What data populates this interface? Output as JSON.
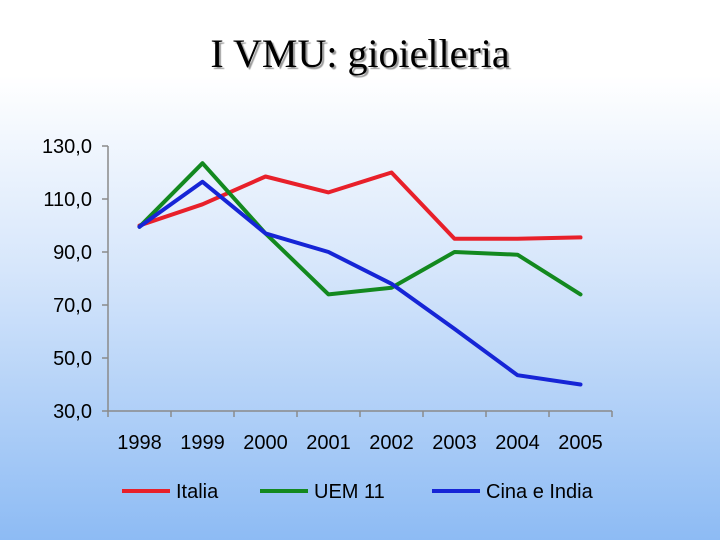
{
  "title": "I VMU: gioielleria",
  "chart_data": {
    "type": "line",
    "categories": [
      "1998",
      "1999",
      "2000",
      "2001",
      "2002",
      "2003",
      "2004",
      "2005"
    ],
    "ylim": [
      30,
      130
    ],
    "yticks": [
      "130,0",
      "110,0",
      "90,0",
      "70,0",
      "50,0",
      "30,0"
    ],
    "ytick_values": [
      130,
      110,
      90,
      70,
      50,
      30
    ],
    "grid": false,
    "legend_position": "bottom",
    "series": [
      {
        "name": "Italia",
        "color": "#e8202a",
        "values": [
          100,
          108,
          118.5,
          112.5,
          120,
          95,
          95,
          95.5
        ]
      },
      {
        "name": "UEM 11",
        "color": "#13891f",
        "values": [
          99.5,
          123.5,
          97,
          74,
          76.5,
          90,
          89,
          74
        ]
      },
      {
        "name": "Cina e India",
        "color": "#1625d6",
        "values": [
          99.5,
          116.5,
          97,
          90,
          78,
          61,
          43.5,
          40
        ]
      }
    ]
  }
}
